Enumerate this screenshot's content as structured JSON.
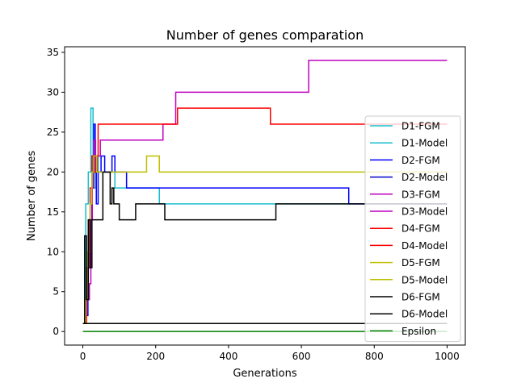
{
  "chart_data": {
    "type": "line",
    "title": "Number of genes comparation",
    "xlabel": "Generations",
    "ylabel": "Number of genes",
    "xlim": [
      -50,
      1050
    ],
    "ylim": [
      -1.7,
      35.7
    ],
    "xticks": [
      0,
      200,
      400,
      600,
      800,
      1000
    ],
    "yticks": [
      0,
      5,
      10,
      15,
      20,
      25,
      30,
      35
    ],
    "grid": false,
    "legend_position": "right",
    "series": [
      {
        "name": "D1-FGM",
        "color": "#17becf",
        "points": [
          [
            0,
            1
          ],
          [
            8,
            1
          ],
          [
            8,
            16
          ],
          [
            15,
            16
          ],
          [
            15,
            20
          ],
          [
            22,
            20
          ],
          [
            22,
            28
          ],
          [
            28,
            28
          ],
          [
            28,
            18
          ],
          [
            35,
            18
          ],
          [
            35,
            22
          ],
          [
            42,
            22
          ],
          [
            42,
            20
          ],
          [
            88,
            20
          ],
          [
            88,
            18
          ],
          [
            210,
            18
          ],
          [
            210,
            16
          ],
          [
            1000,
            16
          ]
        ]
      },
      {
        "name": "D1-Model",
        "color": "#17becf",
        "points": [
          [
            0,
            1
          ],
          [
            1000,
            1
          ]
        ]
      },
      {
        "name": "D2-FGM",
        "color": "#0000ff",
        "points": [
          [
            0,
            1
          ],
          [
            6,
            1
          ],
          [
            6,
            2
          ],
          [
            14,
            2
          ],
          [
            14,
            8
          ],
          [
            20,
            8
          ],
          [
            20,
            14
          ],
          [
            25,
            14
          ],
          [
            25,
            18
          ],
          [
            30,
            18
          ],
          [
            30,
            26
          ],
          [
            34,
            26
          ],
          [
            34,
            20
          ],
          [
            37,
            20
          ],
          [
            37,
            16
          ],
          [
            42,
            16
          ],
          [
            42,
            20
          ],
          [
            50,
            20
          ],
          [
            50,
            22
          ],
          [
            60,
            22
          ],
          [
            60,
            20
          ],
          [
            80,
            20
          ],
          [
            80,
            22
          ],
          [
            88,
            22
          ],
          [
            88,
            20
          ],
          [
            120,
            20
          ],
          [
            120,
            18
          ],
          [
            730,
            18
          ],
          [
            730,
            16
          ],
          [
            1000,
            16
          ]
        ]
      },
      {
        "name": "D2-Model",
        "color": "#0000cc",
        "points": [
          [
            0,
            1
          ],
          [
            1000,
            1
          ]
        ]
      },
      {
        "name": "D3-FGM",
        "color": "#bf00bf",
        "points": [
          [
            0,
            1
          ],
          [
            10,
            1
          ],
          [
            10,
            4
          ],
          [
            18,
            4
          ],
          [
            18,
            6
          ],
          [
            22,
            6
          ],
          [
            22,
            14
          ],
          [
            26,
            14
          ],
          [
            26,
            18
          ],
          [
            30,
            18
          ],
          [
            30,
            24
          ],
          [
            35,
            24
          ],
          [
            35,
            20
          ],
          [
            40,
            20
          ],
          [
            40,
            22
          ],
          [
            48,
            22
          ],
          [
            48,
            24
          ],
          [
            220,
            24
          ],
          [
            220,
            26
          ],
          [
            255,
            26
          ],
          [
            255,
            30
          ],
          [
            620,
            30
          ],
          [
            620,
            34
          ],
          [
            1000,
            34
          ]
        ]
      },
      {
        "name": "D3-Model",
        "color": "#bf00bf",
        "points": [
          [
            0,
            1
          ],
          [
            1000,
            1
          ]
        ]
      },
      {
        "name": "D4-FGM",
        "color": "#ff0000",
        "points": [
          [
            0,
            1
          ],
          [
            10,
            1
          ],
          [
            10,
            8
          ],
          [
            16,
            8
          ],
          [
            16,
            14
          ],
          [
            20,
            14
          ],
          [
            20,
            18
          ],
          [
            25,
            18
          ],
          [
            25,
            22
          ],
          [
            30,
            22
          ],
          [
            30,
            20
          ],
          [
            36,
            20
          ],
          [
            36,
            22
          ],
          [
            42,
            22
          ],
          [
            42,
            26
          ],
          [
            260,
            26
          ],
          [
            260,
            28
          ],
          [
            515,
            28
          ],
          [
            515,
            26
          ],
          [
            1000,
            26
          ]
        ]
      },
      {
        "name": "D4-Model",
        "color": "#ff0000",
        "points": [
          [
            0,
            1
          ],
          [
            1000,
            1
          ]
        ]
      },
      {
        "name": "D5-FGM",
        "color": "#bfbf00",
        "points": [
          [
            0,
            1
          ],
          [
            8,
            1
          ],
          [
            8,
            4
          ],
          [
            14,
            4
          ],
          [
            14,
            10
          ],
          [
            20,
            10
          ],
          [
            20,
            16
          ],
          [
            25,
            16
          ],
          [
            25,
            20
          ],
          [
            30,
            20
          ],
          [
            30,
            22
          ],
          [
            38,
            22
          ],
          [
            38,
            20
          ],
          [
            175,
            20
          ],
          [
            175,
            22
          ],
          [
            210,
            22
          ],
          [
            210,
            20
          ],
          [
            1000,
            20
          ]
        ]
      },
      {
        "name": "D5-Model",
        "color": "#bfbf00",
        "points": [
          [
            0,
            1
          ],
          [
            1000,
            1
          ]
        ]
      },
      {
        "name": "D6-FGM",
        "color": "#000000",
        "points": [
          [
            0,
            1
          ],
          [
            5,
            1
          ],
          [
            5,
            12
          ],
          [
            10,
            12
          ],
          [
            10,
            4
          ],
          [
            15,
            4
          ],
          [
            15,
            14
          ],
          [
            20,
            14
          ],
          [
            20,
            8
          ],
          [
            25,
            8
          ],
          [
            25,
            14
          ],
          [
            55,
            14
          ],
          [
            55,
            20
          ],
          [
            75,
            20
          ],
          [
            75,
            16
          ],
          [
            80,
            16
          ],
          [
            80,
            18
          ],
          [
            85,
            18
          ],
          [
            85,
            16
          ],
          [
            100,
            16
          ],
          [
            100,
            14
          ],
          [
            145,
            14
          ],
          [
            145,
            16
          ],
          [
            225,
            16
          ],
          [
            225,
            14
          ],
          [
            530,
            14
          ],
          [
            530,
            16
          ],
          [
            1000,
            16
          ]
        ]
      },
      {
        "name": "D6-Model",
        "color": "#000000",
        "points": [
          [
            0,
            1
          ],
          [
            1000,
            1
          ]
        ]
      },
      {
        "name": "Epsilon",
        "color": "#008000",
        "points": [
          [
            0,
            0
          ],
          [
            1000,
            0
          ]
        ]
      }
    ]
  }
}
